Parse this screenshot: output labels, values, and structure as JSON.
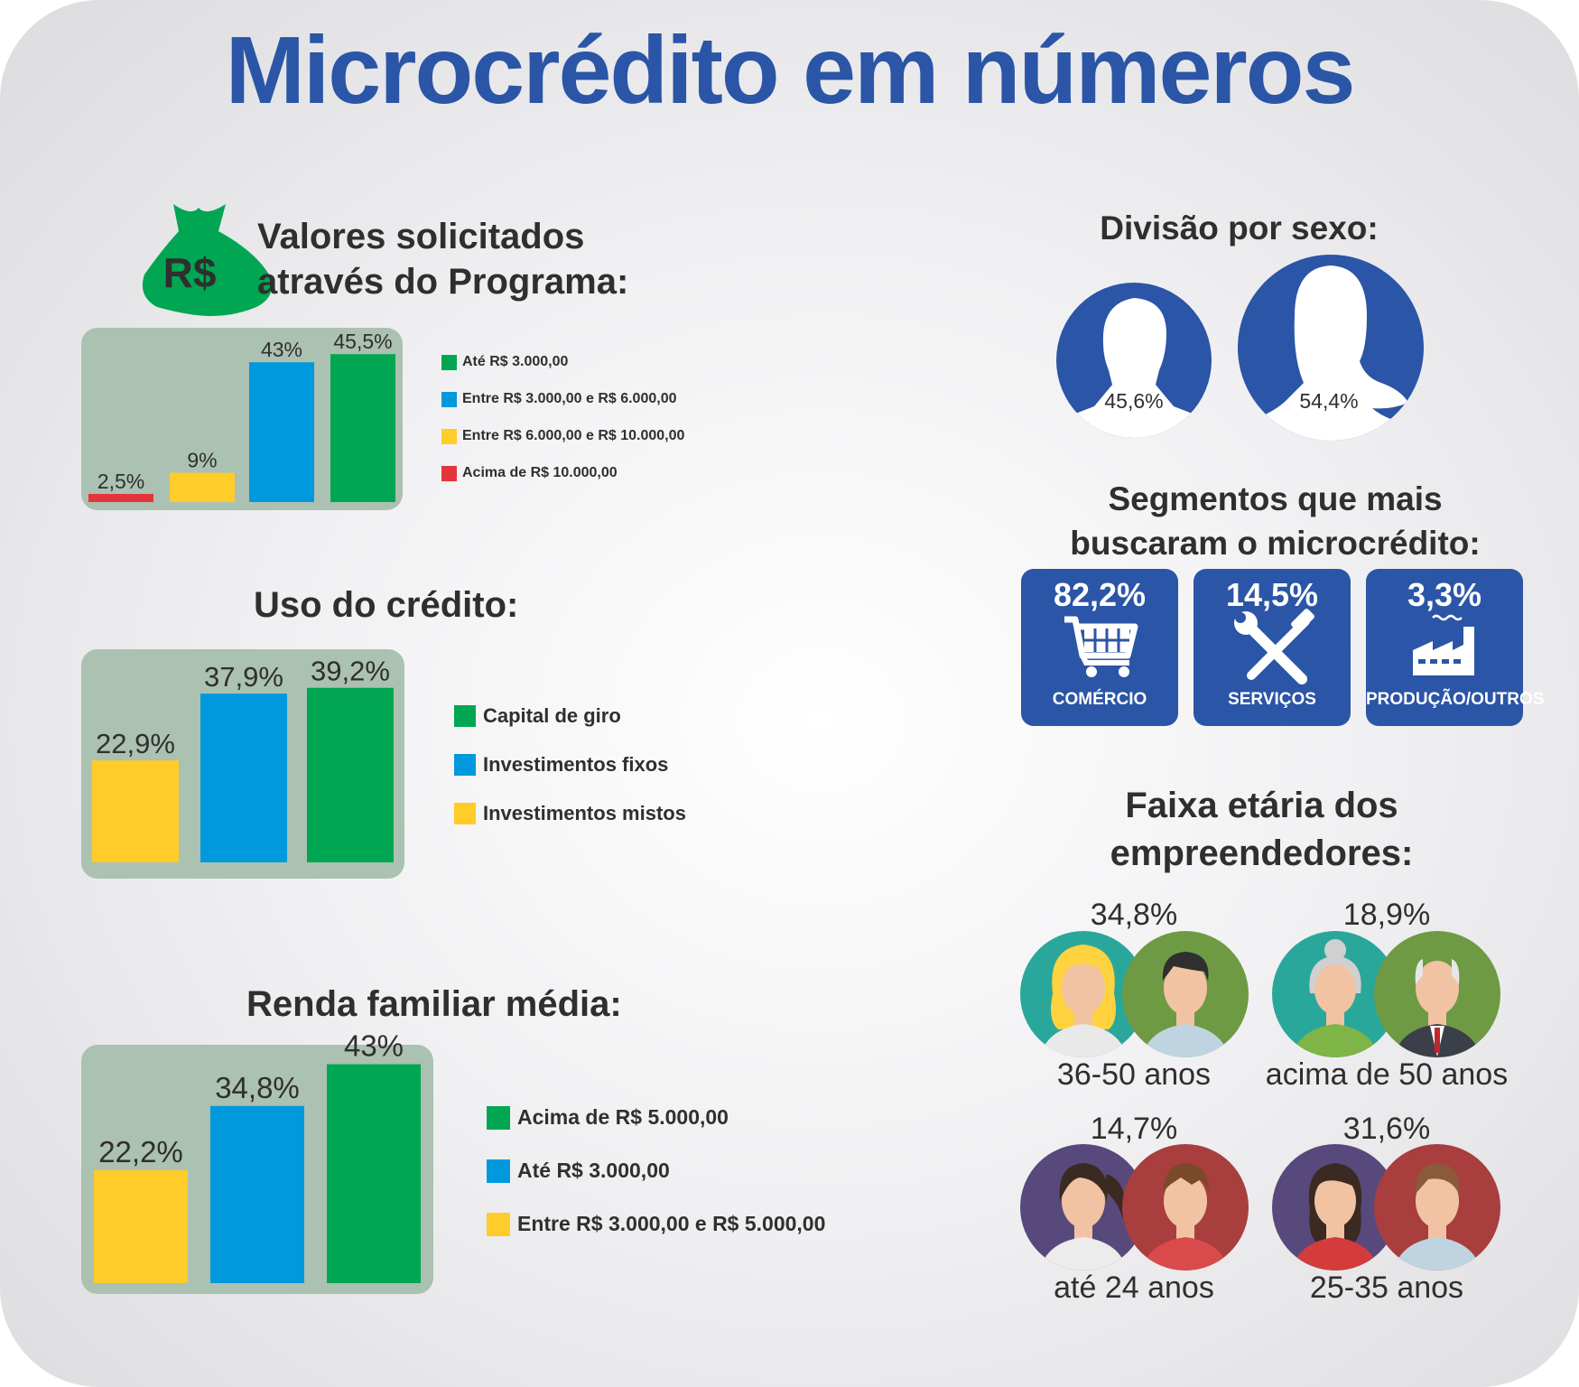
{
  "title": "Microcrédito em números",
  "colors": {
    "title": "#2b55a6",
    "green": "#00a651",
    "blue": "#0099dd",
    "yellow": "#ffcc29",
    "red": "#e4343c",
    "panel": "#abc1b1",
    "navy": "#2b55a6"
  },
  "valores": {
    "title_line1": "Valores solicitados",
    "title_line2": "através do Programa:",
    "icon": "money-bag-icon",
    "icon_text": "R$",
    "legend": [
      "Até R$ 3.000,00",
      "Entre R$ 3.000,00 e R$ 6.000,00",
      "Entre R$ 6.000,00 e R$ 10.000,00",
      "Acima de R$ 10.000,00"
    ]
  },
  "uso": {
    "title": "Uso do crédito:",
    "legend": [
      "Capital de giro",
      "Investimentos fixos",
      "Investimentos mistos"
    ]
  },
  "renda": {
    "title": "Renda familiar média:",
    "legend": [
      "Acima de R$ 5.000,00",
      "Até R$ 3.000,00",
      "Entre R$ 3.000,00 e R$ 5.000,00"
    ]
  },
  "sexo": {
    "title": "Divisão por sexo:",
    "male_label": "45,6%",
    "female_label": "54,4%"
  },
  "segmentos": {
    "title_line1": "Segmentos que mais",
    "title_line2": "buscaram o microcrédito:",
    "items": [
      {
        "value": "82,2%",
        "label": "COMÉRCIO",
        "icon": "shopping-cart-icon"
      },
      {
        "value": "14,5%",
        "label": "SERVIÇOS",
        "icon": "tools-icon"
      },
      {
        "value": "3,3%",
        "label": "PRODUÇÃO/OUTROS",
        "icon": "factory-icon"
      }
    ]
  },
  "faixa": {
    "title_line1": "Faixa etária dos",
    "title_line2": "empreendedores:",
    "items": [
      {
        "pct": "34,8%",
        "label": "36-50 anos"
      },
      {
        "pct": "18,9%",
        "label": "acima de 50 anos"
      },
      {
        "pct": "14,7%",
        "label": "até 24 anos"
      },
      {
        "pct": "31,6%",
        "label": "25-35 anos"
      }
    ]
  },
  "chart_data": [
    {
      "type": "bar",
      "title": "Valores solicitados através do Programa:",
      "categories": [
        "Acima de R$ 10.000,00",
        "Entre R$ 6.000,00 e R$ 10.000,00",
        "Entre R$ 3.000,00 e R$ 6.000,00",
        "Até R$ 3.000,00"
      ],
      "values": [
        2.5,
        9,
        43,
        45.5
      ],
      "labels": [
        "2,5%",
        "9%",
        "43%",
        "45,5%"
      ],
      "colors": [
        "#e4343c",
        "#ffcc29",
        "#0099dd",
        "#00a651"
      ],
      "ylim": [
        0,
        50
      ],
      "legend_position": "right"
    },
    {
      "type": "bar",
      "title": "Uso do crédito:",
      "categories": [
        "Investimentos mistos",
        "Investimentos fixos",
        "Capital de giro"
      ],
      "values": [
        22.9,
        37.9,
        39.2
      ],
      "labels": [
        "22,9%",
        "37,9%",
        "39,2%"
      ],
      "colors": [
        "#ffcc29",
        "#0099dd",
        "#00a651"
      ],
      "ylim": [
        0,
        43
      ],
      "legend_position": "right"
    },
    {
      "type": "bar",
      "title": "Renda familiar média:",
      "categories": [
        "Entre R$ 3.000,00 e R$ 5.000,00",
        "Até R$ 3.000,00",
        "Acima de R$ 5.000,00"
      ],
      "values": [
        22.2,
        34.8,
        43
      ],
      "labels": [
        "22,2%",
        "34,8%",
        "43%"
      ],
      "colors": [
        "#ffcc29",
        "#0099dd",
        "#00a651"
      ],
      "ylim": [
        0,
        47
      ],
      "legend_position": "right"
    }
  ]
}
